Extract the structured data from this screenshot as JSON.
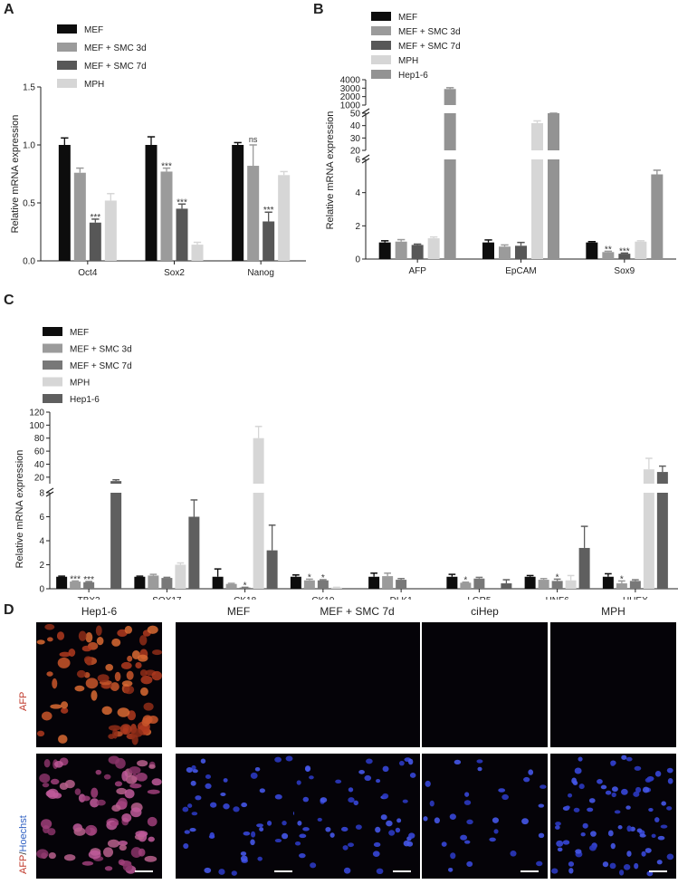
{
  "panels": {
    "A": "A",
    "B": "B",
    "C": "C",
    "D": "D"
  },
  "colors": {
    "MEF": "#0d0d0d",
    "MEF + SMC 3d": "#9b9b9b",
    "MEF + SMC 7d": "#575757",
    "MPH": "#d6d6d6",
    "Hep1-6": "#939393",
    "Hep1-6_C": "#5f5f5f"
  },
  "chart_data": [
    {
      "id": "A",
      "type": "bar",
      "ylabel": "Relative mRNA expression",
      "ylim": [
        0,
        1.5
      ],
      "yticks": [
        "0.0",
        "0.5",
        "1.0",
        "1.5"
      ],
      "categories": [
        "Oct4",
        "Sox2",
        "Nanog"
      ],
      "legend": [
        "MEF",
        "MEF + SMC 3d",
        "MEF + SMC 7d",
        "MPH"
      ],
      "series": [
        {
          "name": "MEF",
          "values": [
            1.0,
            1.0,
            1.0
          ],
          "err": [
            0.06,
            0.07,
            0.02
          ]
        },
        {
          "name": "MEF + SMC 3d",
          "values": [
            0.76,
            0.77,
            0.82
          ],
          "err": [
            0.04,
            0.03,
            0.18
          ]
        },
        {
          "name": "MEF + SMC 7d",
          "values": [
            0.33,
            0.45,
            0.34
          ],
          "err": [
            0.03,
            0.04,
            0.08
          ]
        },
        {
          "name": "MPH",
          "values": [
            0.52,
            0.14,
            0.74
          ],
          "err": [
            0.06,
            0.02,
            0.03
          ]
        }
      ],
      "annotations": [
        {
          "series": 2,
          "cat": 0,
          "text": "***"
        },
        {
          "series": 1,
          "cat": 1,
          "text": "***"
        },
        {
          "series": 2,
          "cat": 1,
          "text": "***"
        },
        {
          "series": 1,
          "cat": 2,
          "text": "ns"
        },
        {
          "series": 2,
          "cat": 2,
          "text": "***"
        }
      ]
    },
    {
      "id": "B",
      "type": "bar",
      "ylabel": "Relative mRNA expression",
      "broken_axis": true,
      "ysegments": [
        {
          "range": [
            0,
            6
          ],
          "ticks": [
            "0",
            "2",
            "4",
            "6"
          ]
        },
        {
          "range": [
            20,
            50
          ],
          "ticks": [
            "20",
            "30",
            "40",
            "50"
          ]
        },
        {
          "range": [
            1000,
            4000
          ],
          "ticks": [
            "1000",
            "2000",
            "3000",
            "4000"
          ]
        }
      ],
      "categories": [
        "AFP",
        "EpCAM",
        "Sox9"
      ],
      "legend": [
        "MEF",
        "MEF + SMC 3d",
        "MEF + SMC 7d",
        "MPH",
        "Hep1-6"
      ],
      "series": [
        {
          "name": "MEF",
          "values": [
            1.0,
            1.0,
            1.0
          ],
          "err": [
            0.1,
            0.15,
            0.05
          ]
        },
        {
          "name": "MEF + SMC 3d",
          "values": [
            1.05,
            0.75,
            0.42
          ],
          "err": [
            0.12,
            0.1,
            0.05
          ]
        },
        {
          "name": "MEF + SMC 7d",
          "values": [
            0.85,
            0.8,
            0.32
          ],
          "err": [
            0.05,
            0.2,
            0.04
          ]
        },
        {
          "name": "MPH",
          "values": [
            1.25,
            42,
            1.05
          ],
          "err": [
            0.08,
            1.8,
            0.05
          ]
        },
        {
          "name": "Hep1-6",
          "values": [
            2900,
            900,
            5.1
          ],
          "err": [
            150,
            60,
            0.25
          ]
        }
      ],
      "annotations": [
        {
          "series": 1,
          "cat": 2,
          "text": "**"
        },
        {
          "series": 2,
          "cat": 2,
          "text": "***"
        }
      ]
    },
    {
      "id": "C",
      "type": "bar",
      "ylabel": "Relative mRNA expression",
      "broken_axis": true,
      "ysegments": [
        {
          "range": [
            0,
            8
          ],
          "ticks": [
            "0",
            "2",
            "4",
            "6",
            "8"
          ]
        },
        {
          "range": [
            10,
            120
          ],
          "ticks": [
            "20",
            "40",
            "60",
            "80",
            "100",
            "120"
          ]
        }
      ],
      "categories": [
        "TBX3",
        "SOX17",
        "CK18",
        "CK19",
        "DLK1",
        "LGR5",
        "HNF6",
        "HHEX"
      ],
      "legend": [
        "MEF",
        "MEF + SMC 3d",
        "MEF + SMC 7d",
        "MPH",
        "Hep1-6"
      ],
      "series": [
        {
          "name": "MEF",
          "values": [
            1.0,
            1.0,
            1.0,
            1.0,
            1.0,
            1.0,
            1.0,
            1.0
          ],
          "err": [
            0.05,
            0.05,
            0.65,
            0.15,
            0.3,
            0.2,
            0.1,
            0.25
          ]
        },
        {
          "name": "MEF + SMC 3d",
          "values": [
            0.6,
            1.1,
            0.4,
            0.7,
            1.05,
            0.5,
            0.75,
            0.45
          ],
          "err": [
            0.05,
            0.1,
            0.05,
            0.1,
            0.25,
            0.05,
            0.1,
            0.2
          ]
        },
        {
          "name": "MEF + SMC 7d",
          "values": [
            0.55,
            0.9,
            0.1,
            0.7,
            0.75,
            0.85,
            0.65,
            0.65
          ],
          "err": [
            0.05,
            0.05,
            0.02,
            0.05,
            0.1,
            0.1,
            0.15,
            0.1
          ]
        },
        {
          "name": "MPH",
          "values": [
            null,
            2.0,
            80,
            0.1,
            null,
            null,
            0.7,
            32
          ],
          "err": [
            0,
            0.15,
            18,
            0.02,
            0,
            0,
            0.4,
            17
          ]
        },
        {
          "name": "Hep1-6",
          "values": [
            14,
            6.0,
            3.2,
            null,
            null,
            0.45,
            3.4,
            28
          ],
          "err": [
            2,
            1.4,
            2.1,
            0,
            0,
            0.3,
            1.8,
            9
          ]
        }
      ],
      "annotations": [
        {
          "series": 1,
          "cat": 0,
          "text": "***"
        },
        {
          "series": 2,
          "cat": 0,
          "text": "***"
        },
        {
          "series": 2,
          "cat": 2,
          "text": "*"
        },
        {
          "series": 1,
          "cat": 3,
          "text": "*"
        },
        {
          "series": 2,
          "cat": 3,
          "text": "*"
        },
        {
          "series": 1,
          "cat": 5,
          "text": "*"
        },
        {
          "series": 2,
          "cat": 6,
          "text": "*"
        },
        {
          "series": 1,
          "cat": 7,
          "text": "*"
        }
      ]
    }
  ],
  "microscopy": {
    "columns": [
      "Hep1-6",
      "MEF",
      "MEF + SMC 7d",
      "ciHep",
      "MPH"
    ],
    "row1_label": "AFP",
    "row2_label_a": "AFP",
    "row2_label_sep": "/",
    "row2_label_b": "Hoechst"
  }
}
